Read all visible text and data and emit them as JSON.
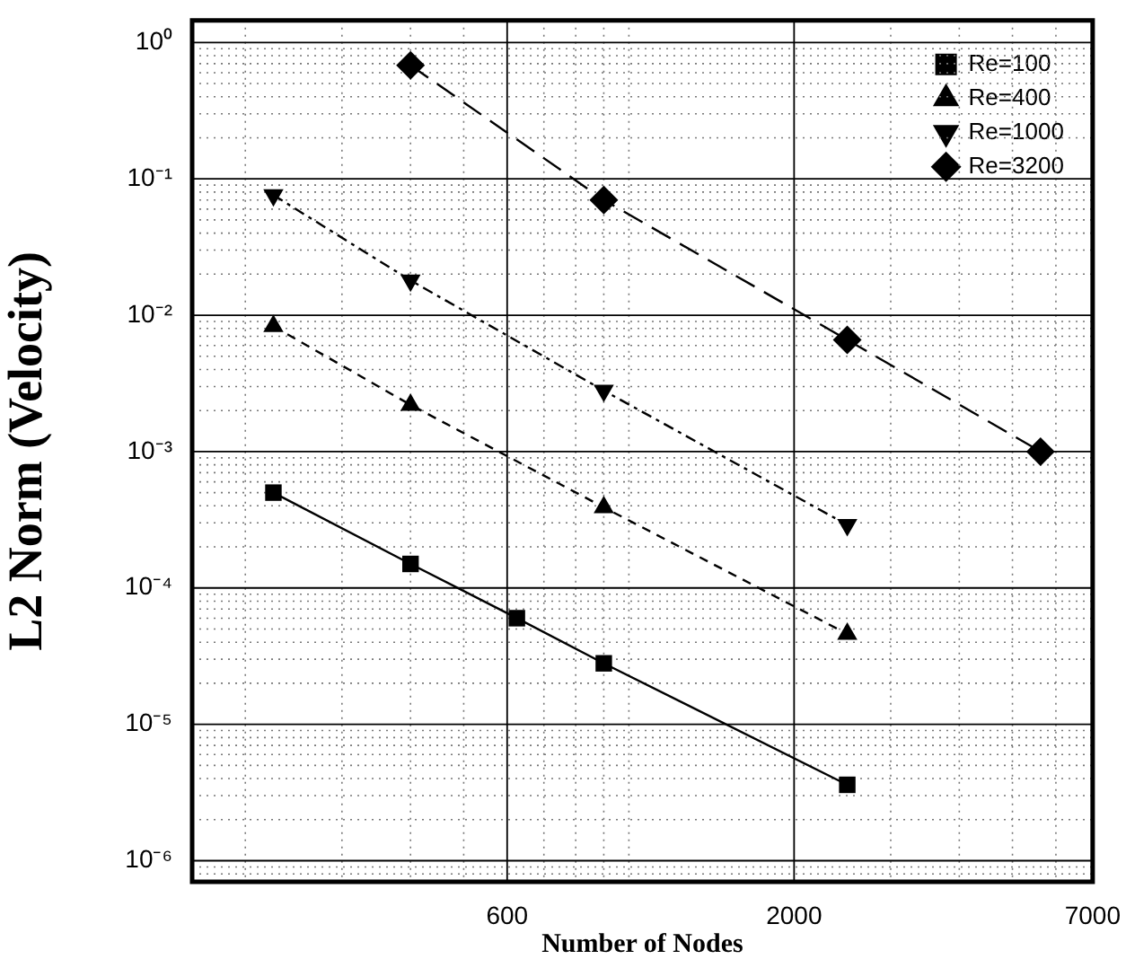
{
  "chart_data": {
    "type": "line",
    "xlabel": "Number of Nodes",
    "ylabel": "L2 Norm (Velocity)",
    "log": "xy",
    "grid": true,
    "legend": "top right",
    "xlim": [
      160,
      7000
    ],
    "ylim": [
      7e-07,
      1.45
    ],
    "xticks": [
      {
        "value": 200,
        "label": null
      },
      {
        "value": 300,
        "label": null
      },
      {
        "value": 400,
        "label": null
      },
      {
        "value": 500,
        "label": null
      },
      600,
      {
        "value": 700,
        "label": null
      },
      {
        "value": 800,
        "label": null
      },
      {
        "value": 900,
        "label": null
      },
      {
        "value": 1000,
        "label": null
      },
      2000,
      {
        "value": 3000,
        "label": null
      },
      {
        "value": 4000,
        "label": null
      },
      {
        "value": 5000,
        "label": null
      },
      {
        "value": 6000,
        "label": null
      },
      7000
    ],
    "yticks": [
      {
        "value": 8e-07,
        "label": null
      },
      {
        "value": 9e-07,
        "label": null
      },
      {
        "value": 1e-06,
        "label": "10⁻⁶"
      },
      {
        "value": 2e-06,
        "label": null
      },
      {
        "value": 3e-06,
        "label": null
      },
      {
        "value": 4e-06,
        "label": null
      },
      {
        "value": 5e-06,
        "label": null
      },
      {
        "value": 6e-06,
        "label": null
      },
      {
        "value": 7e-06,
        "label": null
      },
      {
        "value": 8e-06,
        "label": null
      },
      {
        "value": 9e-06,
        "label": null
      },
      {
        "value": 1e-05,
        "label": "10⁻⁵"
      },
      {
        "value": 2e-05,
        "label": null
      },
      {
        "value": 3e-05,
        "label": null
      },
      {
        "value": 4e-05,
        "label": null
      },
      {
        "value": 5e-05,
        "label": null
      },
      {
        "value": 6e-05,
        "label": null
      },
      {
        "value": 7e-05,
        "label": null
      },
      {
        "value": 8e-05,
        "label": null
      },
      {
        "value": 9e-05,
        "label": null
      },
      {
        "value": 0.0001,
        "label": "10⁻⁴"
      },
      {
        "value": 0.0002,
        "label": null
      },
      {
        "value": 0.0003,
        "label": null
      },
      {
        "value": 0.0004,
        "label": null
      },
      {
        "value": 0.0005,
        "label": null
      },
      {
        "value": 0.0006,
        "label": null
      },
      {
        "value": 0.0007,
        "label": null
      },
      {
        "value": 0.0008,
        "label": null
      },
      {
        "value": 0.0009,
        "label": null
      },
      {
        "value": 0.001,
        "label": "10⁻³"
      },
      {
        "value": 0.002,
        "label": null
      },
      {
        "value": 0.003,
        "label": null
      },
      {
        "value": 0.004,
        "label": null
      },
      {
        "value": 0.005,
        "label": null
      },
      {
        "value": 0.006,
        "label": null
      },
      {
        "value": 0.007,
        "label": null
      },
      {
        "value": 0.008,
        "label": null
      },
      {
        "value": 0.009,
        "label": null
      },
      {
        "value": 0.01,
        "label": "10⁻²"
      },
      {
        "value": 0.02,
        "label": null
      },
      {
        "value": 0.03,
        "label": null
      },
      {
        "value": 0.04,
        "label": null
      },
      {
        "value": 0.05,
        "label": null
      },
      {
        "value": 0.06,
        "label": null
      },
      {
        "value": 0.07,
        "label": null
      },
      {
        "value": 0.08,
        "label": null
      },
      {
        "value": 0.09,
        "label": null
      },
      {
        "value": 0.1,
        "label": "10⁻¹"
      },
      {
        "value": 0.2,
        "label": null
      },
      {
        "value": 0.3,
        "label": null
      },
      {
        "value": 0.4,
        "label": null
      },
      {
        "value": 0.5,
        "label": null
      },
      {
        "value": 0.6,
        "label": null
      },
      {
        "value": 0.7,
        "label": null
      },
      {
        "value": 0.8,
        "label": null
      },
      {
        "value": 0.9,
        "label": null
      },
      {
        "value": 1,
        "label": "10⁰"
      }
    ],
    "series": [
      {
        "name": "Re=100",
        "color": "#000000",
        "marker": "square",
        "line_style": "solid",
        "x": [
          225,
          400,
          625,
          900,
          2500
        ],
        "values": [
          0.0005,
          0.00015,
          6e-05,
          2.8e-05,
          3.6e-06
        ]
      },
      {
        "name": "Re=400",
        "color": "#000000",
        "marker": "triangle",
        "line_style": "dashed",
        "x": [
          225,
          400,
          900,
          2500
        ],
        "values": [
          0.0083,
          0.0022,
          0.00039,
          4.6e-05
        ]
      },
      {
        "name": "Re=1000",
        "color": "#000000",
        "marker": "triangle-down",
        "line_style": "dashdot",
        "x": [
          225,
          400,
          900,
          2500
        ],
        "values": [
          0.076,
          0.018,
          0.0028,
          0.00029
        ]
      },
      {
        "name": "Re=3200",
        "color": "#000000",
        "marker": "diamond",
        "line_style": "longdash",
        "x": [
          400,
          900,
          2500,
          5625
        ],
        "values": [
          0.68,
          0.07,
          0.0066,
          0.001
        ]
      }
    ]
  }
}
